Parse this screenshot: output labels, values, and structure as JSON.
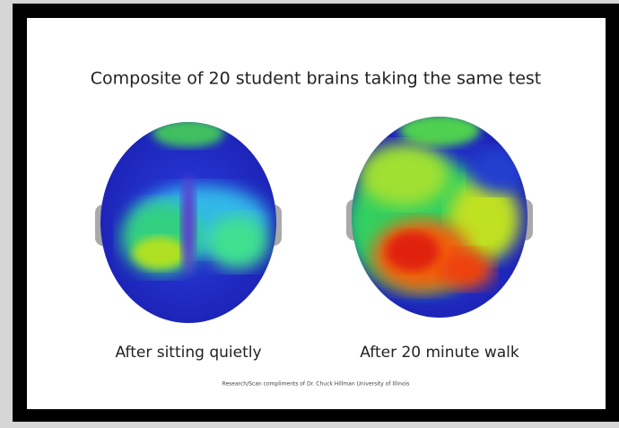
{
  "title": "Composite of 20 student brains taking the same test",
  "panels": [
    {
      "caption": "After sitting quietly"
    },
    {
      "caption": "After 20 minute walk"
    }
  ],
  "credit": "Research/Scan compliments of Dr. Chuck Hillman University of Illinois"
}
